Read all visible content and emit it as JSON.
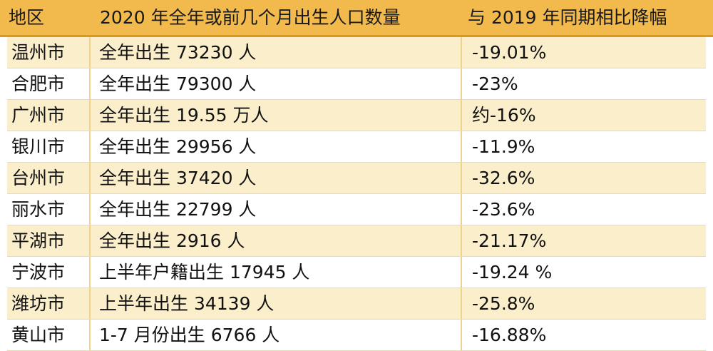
{
  "table": {
    "headers": [
      "地区",
      "2020 年全年或前几个月出生人口数量",
      "与 2019 年同期相比降幅"
    ],
    "rows": [
      [
        "温州市",
        "全年出生 73230 人",
        "-19.01%"
      ],
      [
        "合肥市",
        "全年出生 79300 人",
        "-23%"
      ],
      [
        "广州市",
        "全年出生 19.55 万人",
        "约-16%"
      ],
      [
        "银川市",
        "全年出生 29956 人",
        "-11.9%"
      ],
      [
        "台州市",
        "全年出生 37420 人",
        "-32.6%"
      ],
      [
        "丽水市",
        "全年出生 22799 人",
        "-23.6%"
      ],
      [
        "平湖市",
        "全年出生 2916 人",
        "-21.17%"
      ],
      [
        "宁波市",
        "上半年户籍出生 17945 人",
        "-19.24 %"
      ],
      [
        "潍坊市",
        "上半年出生 34139 人",
        "-25.8%"
      ],
      [
        "黄山市",
        "1-7 月份出生 6766 人",
        "-16.88%"
      ]
    ]
  },
  "colors": {
    "header_bg": "#f2ba4c",
    "row_alt_bg": "#fbeecb",
    "divider": "#f0d28f"
  }
}
